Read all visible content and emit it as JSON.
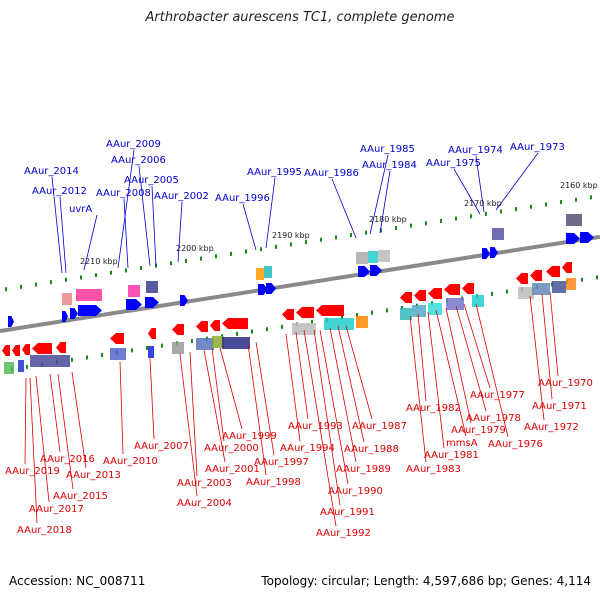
{
  "title": "Arthrobacter aurescens TC1, complete genome",
  "footer": {
    "accession": "Accession: NC_008711",
    "topology": "Topology: circular; Length: 4,597,686 bp; Genes: 4,114"
  },
  "colors": {
    "forward": "#0000ff",
    "reverse": "#ff0000",
    "backbone": "#8a8a8a",
    "tick": "#1a8a1a",
    "label_forward": "#0000cc",
    "label_reverse": "#dd0000"
  },
  "scale_labels": [
    "2210 kbp",
    "2200 kbp",
    "2190 kbp",
    "2180 kbp",
    "2170 kbp",
    "2160 kbp"
  ],
  "forward_labels": [
    "AAur_2014",
    "AAur_2012",
    "uvrA",
    "AAur_2009",
    "AAur_2008",
    "AAur_2006",
    "AAur_2005",
    "AAur_2002",
    "AAur_1996",
    "AAur_1995",
    "AAur_1986",
    "AAur_1985",
    "AAur_1984",
    "AAur_1975",
    "AAur_1974",
    "AAur_1973"
  ],
  "reverse_labels": [
    "AAur_2019",
    "AAur_2018",
    "AAur_2017",
    "AAur_2016",
    "AAur_2015",
    "AAur_2013",
    "AAur_2010",
    "AAur_2007",
    "AAur_2004",
    "AAur_2003",
    "AAur_2001",
    "AAur_2000",
    "AAur_1999",
    "AAur_1998",
    "AAur_1997",
    "AAur_1994",
    "AAur_1993",
    "AAur_1992",
    "AAur_1991",
    "AAur_1990",
    "AAur_1989",
    "AAur_1988",
    "AAur_1987",
    "AAur_1983",
    "AAur_1982",
    "AAur_1981",
    "mmsA",
    "AAur_1979",
    "AAur_1978",
    "AAur_1977",
    "AAur_1976",
    "AAur_1972",
    "AAur_1971",
    "AAur_1970"
  ]
}
